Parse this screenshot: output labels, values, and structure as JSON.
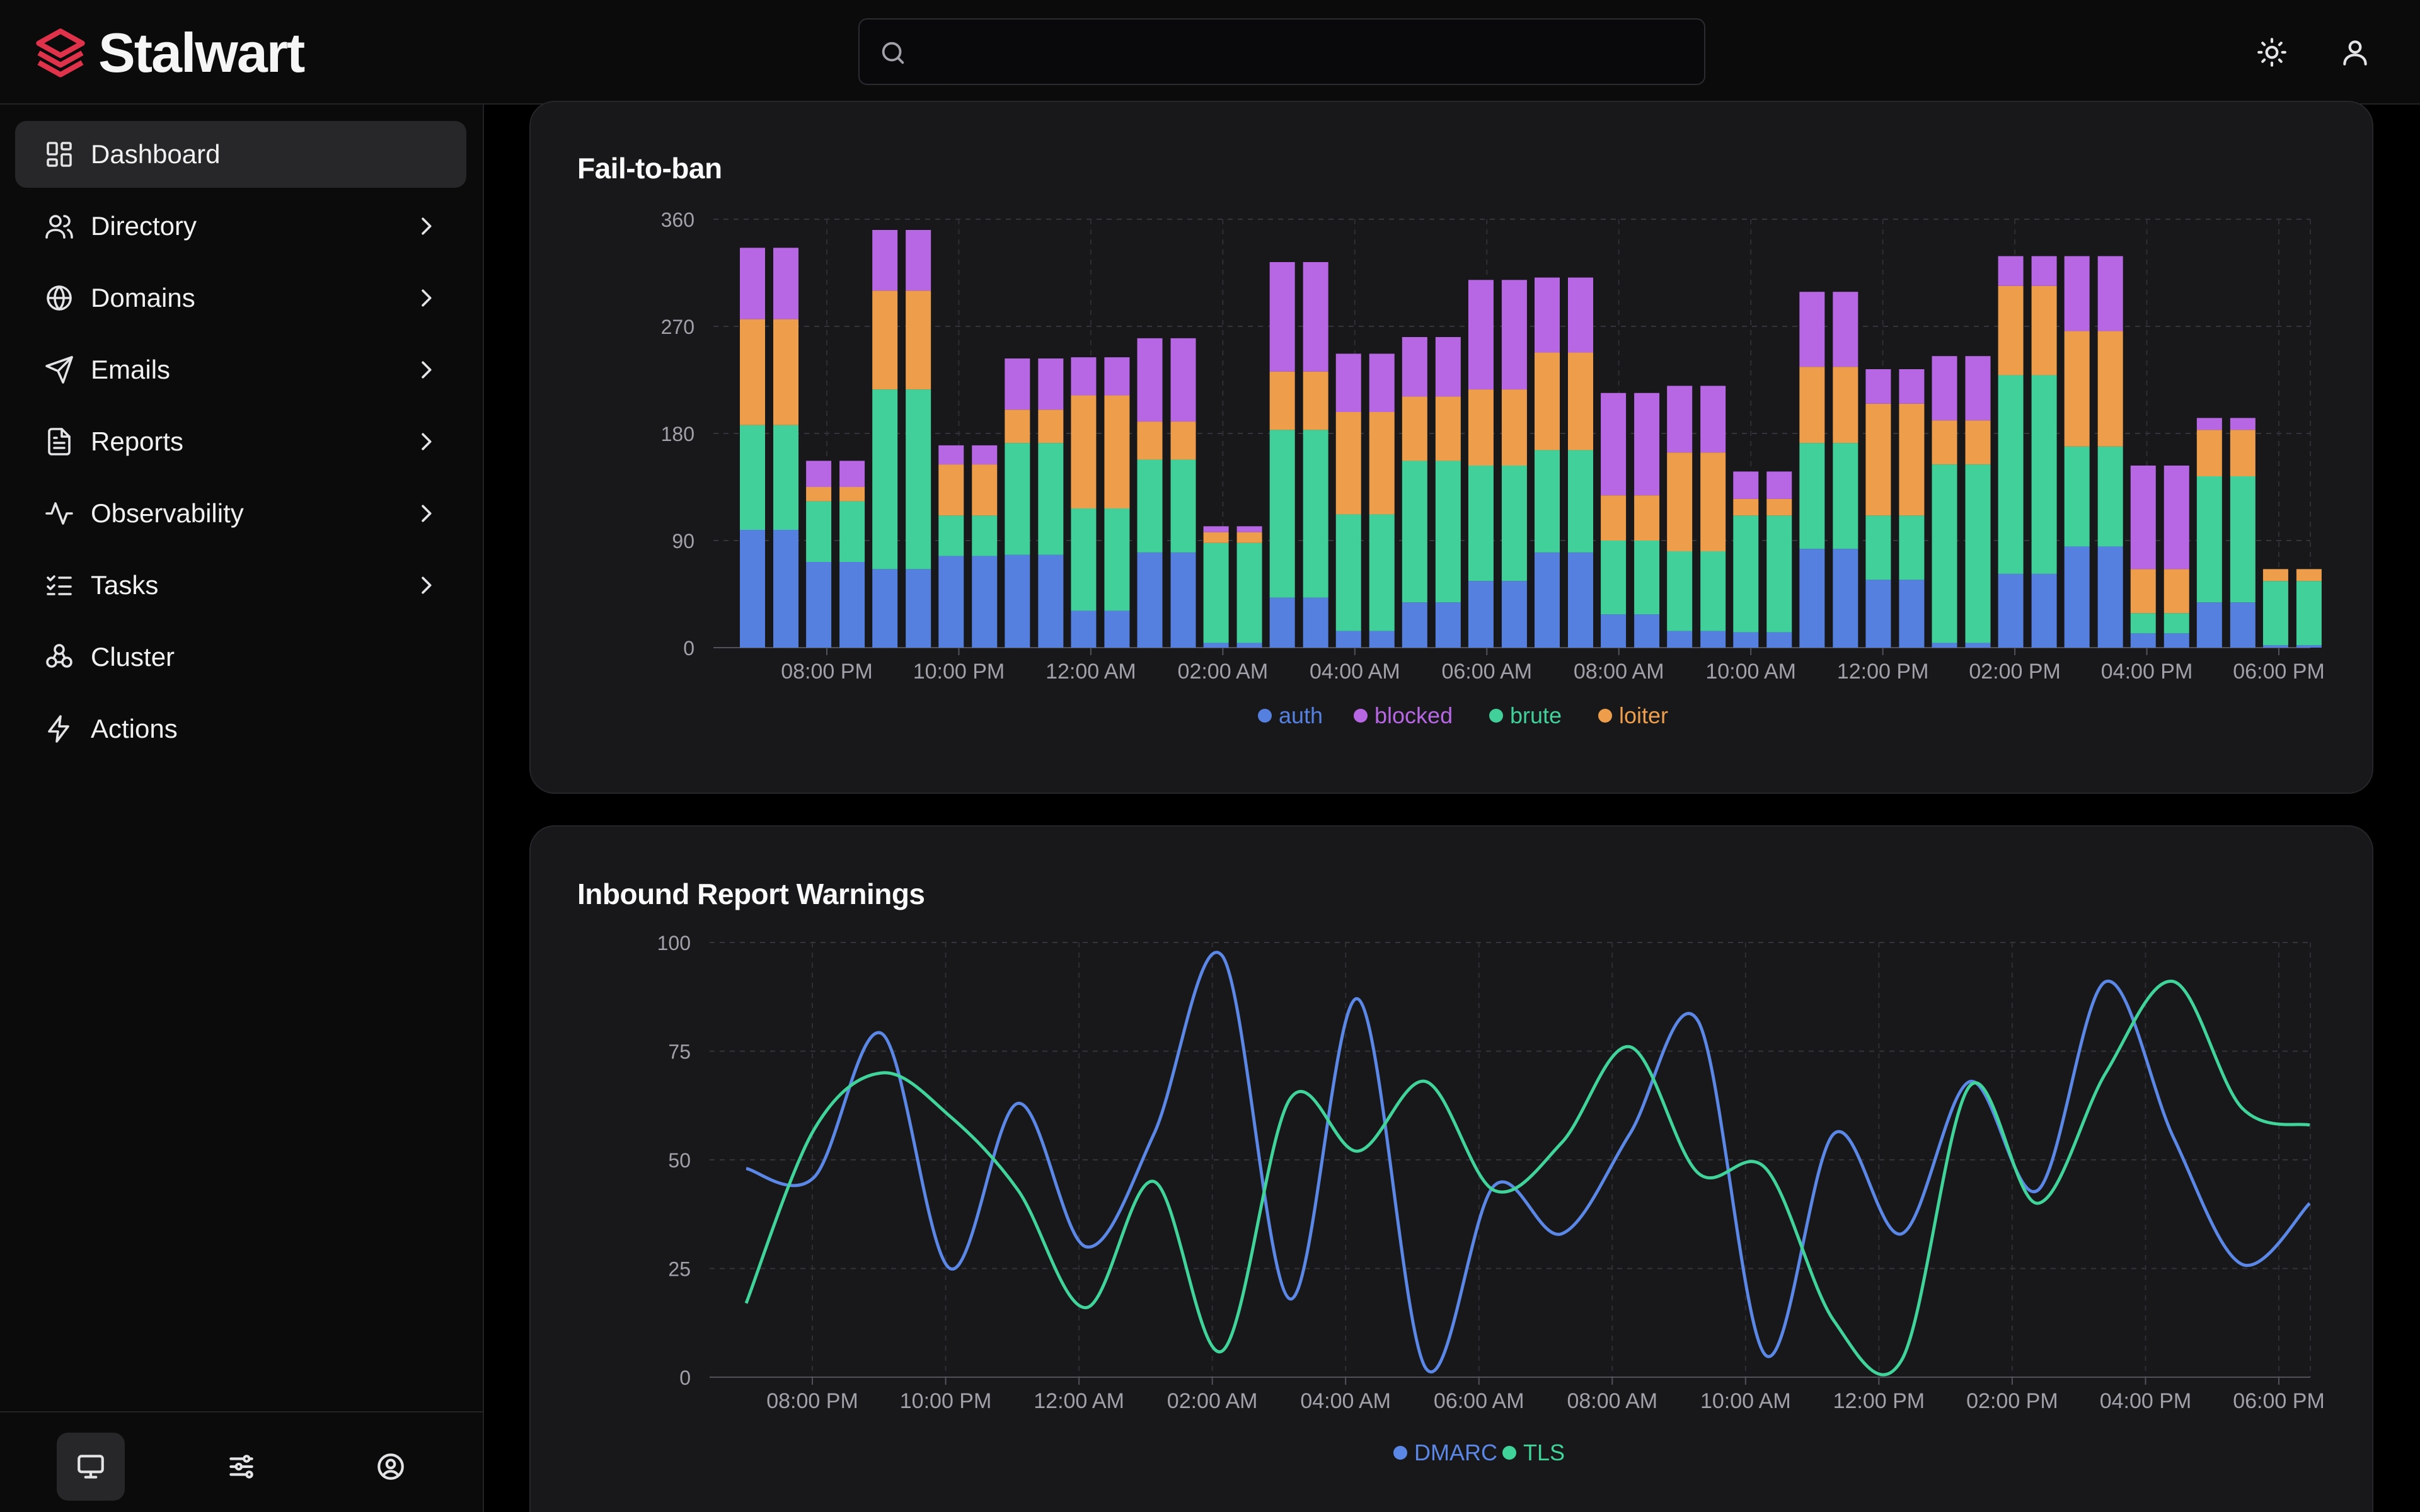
{
  "app": {
    "name": "Stalwart"
  },
  "header": {
    "search_placeholder": "",
    "search_value": "",
    "theme_icon": "sun-icon",
    "user_icon": "user-icon"
  },
  "sidebar": {
    "items": [
      {
        "label": "Dashboard",
        "icon": "dashboard-icon",
        "active": true,
        "expandable": false
      },
      {
        "label": "Directory",
        "icon": "users-icon",
        "active": false,
        "expandable": true
      },
      {
        "label": "Domains",
        "icon": "globe-icon",
        "active": false,
        "expandable": true
      },
      {
        "label": "Emails",
        "icon": "send-icon",
        "active": false,
        "expandable": true
      },
      {
        "label": "Reports",
        "icon": "file-icon",
        "active": false,
        "expandable": true
      },
      {
        "label": "Observability",
        "icon": "activity-icon",
        "active": false,
        "expandable": true
      },
      {
        "label": "Tasks",
        "icon": "list-checks-icon",
        "active": false,
        "expandable": true
      },
      {
        "label": "Cluster",
        "icon": "cluster-icon",
        "active": false,
        "expandable": false
      },
      {
        "label": "Actions",
        "icon": "zap-icon",
        "active": false,
        "expandable": false
      }
    ],
    "footer": [
      {
        "icon": "monitor-icon",
        "active": true
      },
      {
        "icon": "sliders-icon",
        "active": false
      },
      {
        "icon": "user-circle-icon",
        "active": false
      }
    ]
  },
  "colors": {
    "auth": "#5580e0",
    "blocked": "#b767e3",
    "brute": "#41cf9a",
    "loiter": "#ee9e4b",
    "dmarc": "#5b88e6",
    "tls": "#41d49a"
  },
  "chart_data": [
    {
      "type": "bar",
      "stacked": true,
      "title": "Fail-to-ban",
      "x_tick_labels": [
        "08:00 PM",
        "10:00 PM",
        "12:00 AM",
        "02:00 AM",
        "04:00 AM",
        "06:00 AM",
        "08:00 AM",
        "10:00 AM",
        "12:00 PM",
        "02:00 PM",
        "04:00 PM",
        "06:00 PM"
      ],
      "y_ticks": [
        0,
        90,
        180,
        270,
        360
      ],
      "ylim": [
        0,
        360
      ],
      "grid": true,
      "legend_position": "bottom",
      "series": [
        {
          "name": "auth",
          "color": "#5580e0",
          "values": [
            99,
            72,
            66,
            77,
            78,
            31,
            80,
            4,
            42,
            14,
            38,
            56,
            80,
            28,
            14,
            13,
            83,
            57,
            4,
            62,
            85,
            12,
            38,
            2
          ]
        },
        {
          "name": "brute",
          "color": "#41cf9a",
          "values": [
            88,
            51,
            151,
            34,
            94,
            86,
            78,
            84,
            141,
            98,
            119,
            97,
            86,
            62,
            67,
            98,
            89,
            54,
            150,
            167,
            84,
            17,
            106,
            54
          ]
        },
        {
          "name": "loiter",
          "color": "#ee9e4b",
          "values": [
            89,
            12,
            83,
            43,
            28,
            95,
            32,
            9,
            49,
            86,
            54,
            64,
            82,
            38,
            83,
            14,
            64,
            94,
            37,
            75,
            97,
            37,
            39,
            10
          ]
        },
        {
          "name": "blocked",
          "color": "#b767e3",
          "values": [
            60,
            22,
            51,
            16,
            43,
            32,
            70,
            5,
            92,
            49,
            50,
            92,
            63,
            86,
            56,
            23,
            63,
            29,
            54,
            25,
            63,
            87,
            10,
            0
          ]
        }
      ]
    },
    {
      "type": "line",
      "title": "Inbound Report Warnings",
      "x_tick_labels": [
        "08:00 PM",
        "10:00 PM",
        "12:00 AM",
        "02:00 AM",
        "04:00 AM",
        "06:00 AM",
        "08:00 AM",
        "10:00 AM",
        "12:00 PM",
        "02:00 PM",
        "04:00 PM",
        "06:00 PM"
      ],
      "y_ticks": [
        0,
        25,
        50,
        75,
        100
      ],
      "ylim": [
        0,
        100
      ],
      "grid": true,
      "legend_position": "bottom",
      "series": [
        {
          "name": "DMARC",
          "color": "#5b88e6",
          "values": [
            48,
            46,
            79,
            25,
            63,
            30,
            56,
            97,
            18,
            87,
            2,
            44,
            33,
            56,
            82,
            5,
            56,
            33,
            68,
            43,
            91,
            55,
            26,
            40
          ]
        },
        {
          "name": "TLS",
          "color": "#41d49a",
          "values": [
            17,
            57,
            70,
            60,
            43,
            16,
            45,
            6,
            64,
            52,
            68,
            43,
            54,
            76,
            47,
            48,
            13,
            4,
            67,
            40,
            70,
            91,
            62,
            58
          ]
        }
      ]
    }
  ]
}
